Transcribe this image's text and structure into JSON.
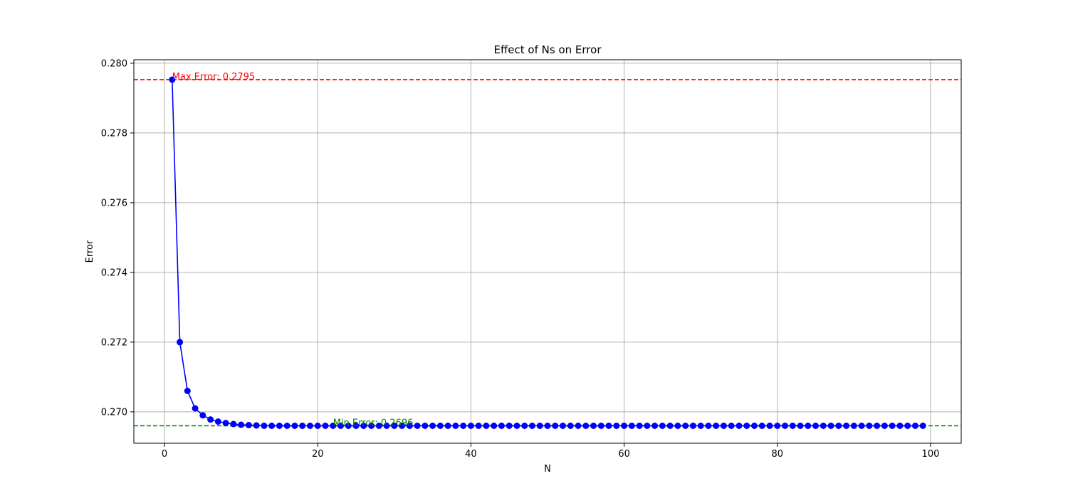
{
  "chart_data": {
    "type": "line",
    "title": "Effect of Ns on Error",
    "xlabel": "N",
    "ylabel": "Error",
    "xlim": [
      -4,
      104
    ],
    "ylim": [
      0.2691,
      0.2801
    ],
    "xticks": [
      0,
      20,
      40,
      60,
      80,
      100
    ],
    "yticks": [
      0.27,
      0.272,
      0.274,
      0.276,
      0.278,
      0.28
    ],
    "xtick_labels": [
      "0",
      "20",
      "40",
      "60",
      "80",
      "100"
    ],
    "ytick_labels": [
      "0.270",
      "0.272",
      "0.274",
      "0.276",
      "0.278",
      "0.280"
    ],
    "grid": true,
    "series": [
      {
        "color": "#0000ff",
        "marker": "circle",
        "x": [
          1,
          2,
          3,
          4,
          5,
          6,
          7,
          8,
          9,
          10,
          11,
          12,
          13,
          14,
          15,
          16,
          17,
          18,
          19,
          20,
          21,
          22,
          23,
          24,
          25,
          26,
          27,
          28,
          29,
          30,
          31,
          32,
          33,
          34,
          35,
          36,
          37,
          38,
          39,
          40,
          41,
          42,
          43,
          44,
          45,
          46,
          47,
          48,
          49,
          50,
          51,
          52,
          53,
          54,
          55,
          56,
          57,
          58,
          59,
          60,
          61,
          62,
          63,
          64,
          65,
          66,
          67,
          68,
          69,
          70,
          71,
          72,
          73,
          74,
          75,
          76,
          77,
          78,
          79,
          80,
          81,
          82,
          83,
          84,
          85,
          86,
          87,
          88,
          89,
          90,
          91,
          92,
          93,
          94,
          95,
          96,
          97,
          98,
          99
        ],
        "y": [
          0.27953,
          0.272,
          0.2706,
          0.2701,
          0.2699,
          0.26978,
          0.26972,
          0.26968,
          0.26965,
          0.26963,
          0.26962,
          0.26961,
          0.2696,
          0.2696,
          0.2696,
          0.2696,
          0.2696,
          0.2696,
          0.2696,
          0.2696,
          0.2696,
          0.2696,
          0.2696,
          0.2696,
          0.2696,
          0.2696,
          0.2696,
          0.2696,
          0.2696,
          0.2696,
          0.2696,
          0.2696,
          0.2696,
          0.2696,
          0.2696,
          0.2696,
          0.2696,
          0.2696,
          0.2696,
          0.2696,
          0.2696,
          0.2696,
          0.2696,
          0.2696,
          0.2696,
          0.2696,
          0.2696,
          0.2696,
          0.2696,
          0.2696,
          0.2696,
          0.2696,
          0.2696,
          0.2696,
          0.2696,
          0.2696,
          0.2696,
          0.2696,
          0.2696,
          0.2696,
          0.2696,
          0.2696,
          0.2696,
          0.2696,
          0.2696,
          0.2696,
          0.2696,
          0.2696,
          0.2696,
          0.2696,
          0.2696,
          0.2696,
          0.2696,
          0.2696,
          0.2696,
          0.2696,
          0.2696,
          0.2696,
          0.2696,
          0.2696,
          0.2696,
          0.2696,
          0.2696,
          0.2696,
          0.2696,
          0.2696,
          0.2696,
          0.2696,
          0.2696,
          0.2696,
          0.2696,
          0.2696,
          0.2696,
          0.2696,
          0.2696,
          0.2696,
          0.2696,
          0.2696,
          0.2696
        ]
      }
    ],
    "hlines": [
      {
        "name": "max-error",
        "y": 0.27953,
        "color": "#ff0000",
        "style": "dashed"
      },
      {
        "name": "min-error",
        "y": 0.2696,
        "color": "#008000",
        "style": "dashed"
      }
    ],
    "annotations": [
      {
        "name": "max-error-label",
        "text": "Max Error: 0.2795",
        "x": 1,
        "y": 0.27953,
        "color": "#ff0000"
      },
      {
        "name": "min-error-label",
        "text": "Min Error: 0.2696",
        "x": 22,
        "y": 0.2696,
        "color": "#008000"
      }
    ],
    "colors": {
      "grid": "#b0b0b0",
      "axes": "#000000"
    }
  }
}
